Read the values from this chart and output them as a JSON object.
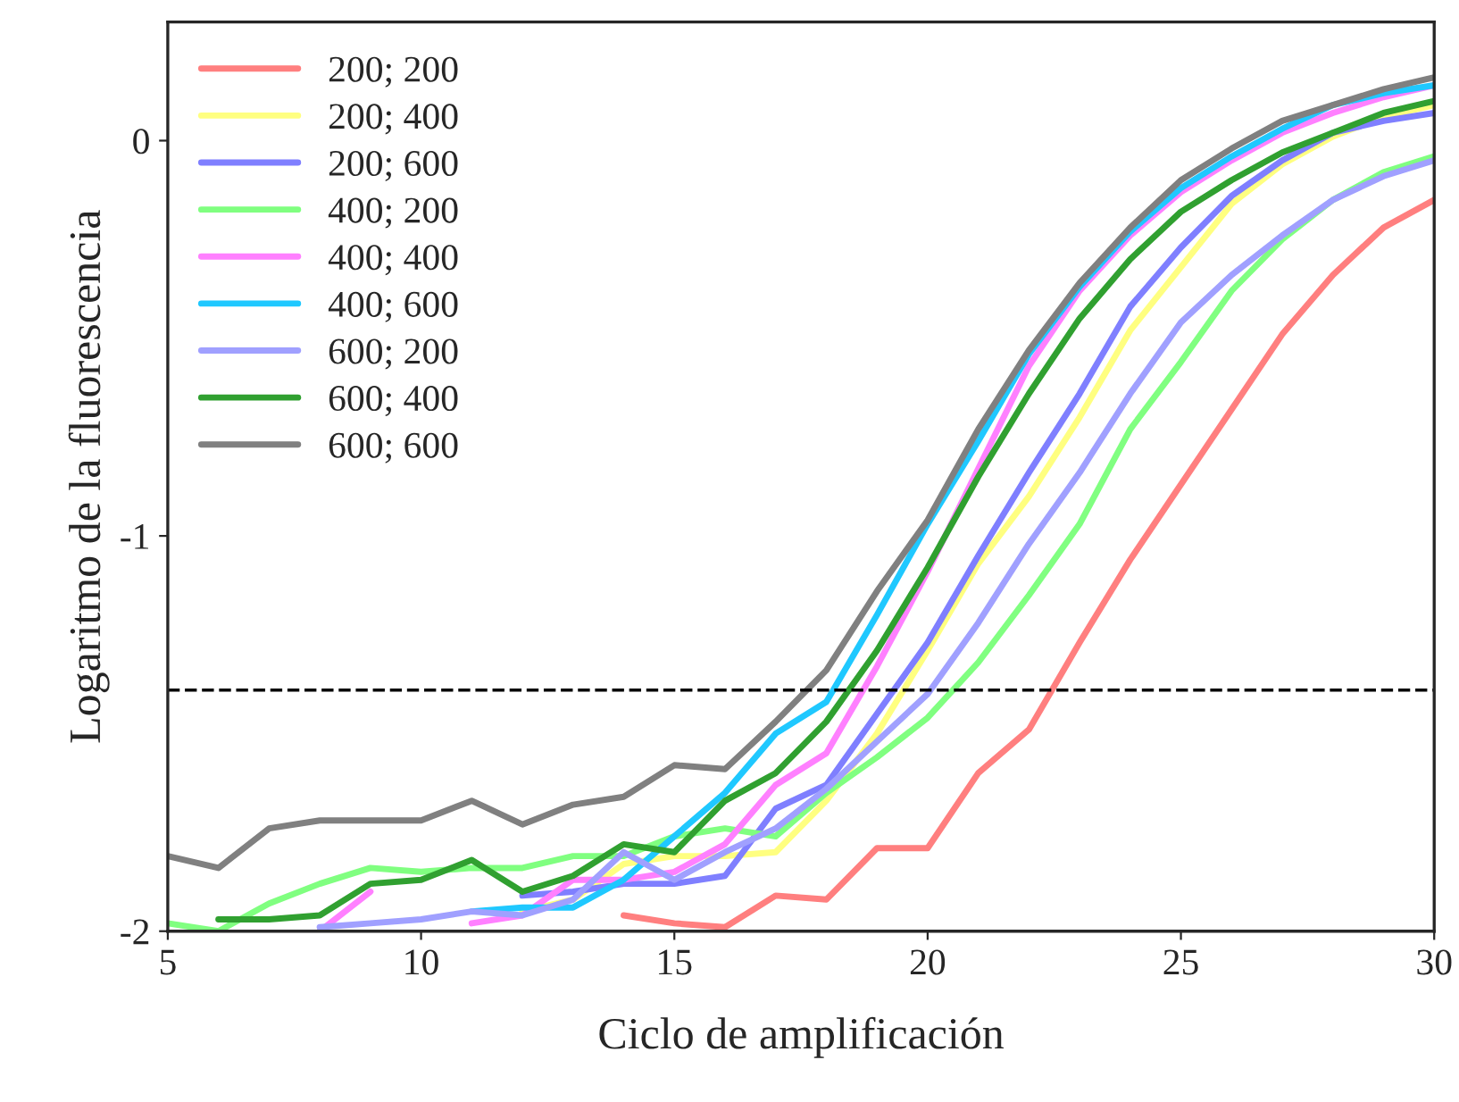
{
  "chart_data": {
    "type": "line",
    "xlabel": "Ciclo de amplificación",
    "ylabel": "Logaritmo de la fluorescencia",
    "x": [
      5,
      6,
      7,
      8,
      9,
      10,
      11,
      12,
      13,
      14,
      15,
      16,
      17,
      18,
      19,
      20,
      21,
      22,
      23,
      24,
      25,
      26,
      27,
      28,
      29,
      30
    ],
    "series": [
      {
        "name": "200; 200",
        "color": "#ff7f7f",
        "values": [
          null,
          null,
          null,
          null,
          null,
          null,
          null,
          null,
          null,
          -1.96,
          -1.98,
          -1.99,
          -1.91,
          -1.92,
          -1.79,
          -1.79,
          -1.6,
          -1.49,
          -1.27,
          -1.06,
          -0.87,
          -0.68,
          -0.49,
          -0.34,
          -0.22,
          -0.15
        ]
      },
      {
        "name": "200; 400",
        "color": "#ffff80",
        "values": [
          null,
          null,
          null,
          null,
          null,
          null,
          null,
          -1.95,
          -1.92,
          -1.83,
          -1.81,
          -1.81,
          -1.8,
          -1.67,
          -1.5,
          -1.29,
          -1.07,
          -0.9,
          -0.7,
          -0.48,
          -0.32,
          -0.16,
          -0.06,
          0.01,
          0.06,
          0.09
        ]
      },
      {
        "name": "200; 600",
        "color": "#7f7fff",
        "values": [
          null,
          null,
          null,
          null,
          null,
          null,
          null,
          -1.91,
          -1.9,
          -1.88,
          -1.88,
          -1.86,
          -1.69,
          -1.63,
          -1.45,
          -1.27,
          -1.05,
          -0.84,
          -0.64,
          -0.42,
          -0.27,
          -0.14,
          -0.05,
          0.02,
          0.05,
          0.07
        ]
      },
      {
        "name": "400; 200",
        "color": "#80ff80",
        "values": [
          -1.98,
          -2.0,
          -1.93,
          -1.88,
          -1.84,
          -1.85,
          -1.84,
          -1.84,
          -1.81,
          -1.81,
          -1.76,
          -1.74,
          -1.76,
          -1.65,
          -1.56,
          -1.46,
          -1.32,
          -1.15,
          -0.97,
          -0.73,
          -0.56,
          -0.38,
          -0.25,
          -0.15,
          -0.08,
          -0.04
        ]
      },
      {
        "name": "400; 400",
        "color": "#ff80ff",
        "values": [
          null,
          null,
          null,
          -2.0,
          -1.9,
          null,
          -1.98,
          -1.96,
          -1.87,
          -1.87,
          -1.85,
          -1.78,
          -1.63,
          -1.55,
          -1.33,
          -1.09,
          -0.83,
          -0.57,
          -0.38,
          -0.24,
          -0.13,
          -0.05,
          0.02,
          0.07,
          0.11,
          0.14
        ]
      },
      {
        "name": "400; 600",
        "color": "#1fc8ff",
        "values": [
          null,
          null,
          null,
          null,
          null,
          null,
          -1.95,
          -1.94,
          -1.94,
          -1.87,
          -1.76,
          -1.65,
          -1.5,
          -1.42,
          -1.2,
          -0.97,
          -0.76,
          -0.54,
          -0.37,
          -0.23,
          -0.12,
          -0.04,
          0.03,
          0.09,
          0.12,
          0.14
        ]
      },
      {
        "name": "600; 200",
        "color": "#a0a0ff",
        "values": [
          null,
          null,
          null,
          -1.99,
          -1.98,
          -1.97,
          -1.95,
          -1.96,
          -1.92,
          -1.8,
          -1.87,
          -1.8,
          -1.74,
          -1.64,
          -1.52,
          -1.4,
          -1.22,
          -1.02,
          -0.84,
          -0.64,
          -0.46,
          -0.34,
          -0.24,
          -0.15,
          -0.09,
          -0.05
        ]
      },
      {
        "name": "600; 400",
        "color": "#30a030",
        "values": [
          null,
          -1.97,
          -1.97,
          -1.96,
          -1.88,
          -1.87,
          -1.82,
          -1.9,
          -1.86,
          -1.78,
          -1.8,
          -1.67,
          -1.6,
          -1.47,
          -1.29,
          -1.08,
          -0.85,
          -0.64,
          -0.45,
          -0.3,
          -0.18,
          -0.1,
          -0.03,
          0.02,
          0.07,
          0.1
        ]
      },
      {
        "name": "600; 600",
        "color": "#808080",
        "values": [
          -1.81,
          -1.84,
          -1.74,
          -1.72,
          -1.72,
          -1.72,
          -1.67,
          -1.73,
          -1.68,
          -1.66,
          -1.58,
          -1.59,
          -1.47,
          -1.34,
          -1.14,
          -0.96,
          -0.73,
          -0.53,
          -0.36,
          -0.22,
          -0.1,
          -0.02,
          0.05,
          0.09,
          0.13,
          0.16
        ]
      }
    ],
    "xlim": [
      5,
      30
    ],
    "xticks": [
      5,
      10,
      15,
      20,
      25,
      30
    ],
    "ylim": [
      -2,
      0.3
    ],
    "yticks": [
      -2,
      -1,
      0
    ],
    "ref_lines": [
      {
        "axis": "y",
        "value": -1.39,
        "color": "#000000",
        "line_style": "dashed"
      }
    ],
    "legend": "top left",
    "grid": false,
    "marker": "none",
    "line_style": "solid"
  }
}
